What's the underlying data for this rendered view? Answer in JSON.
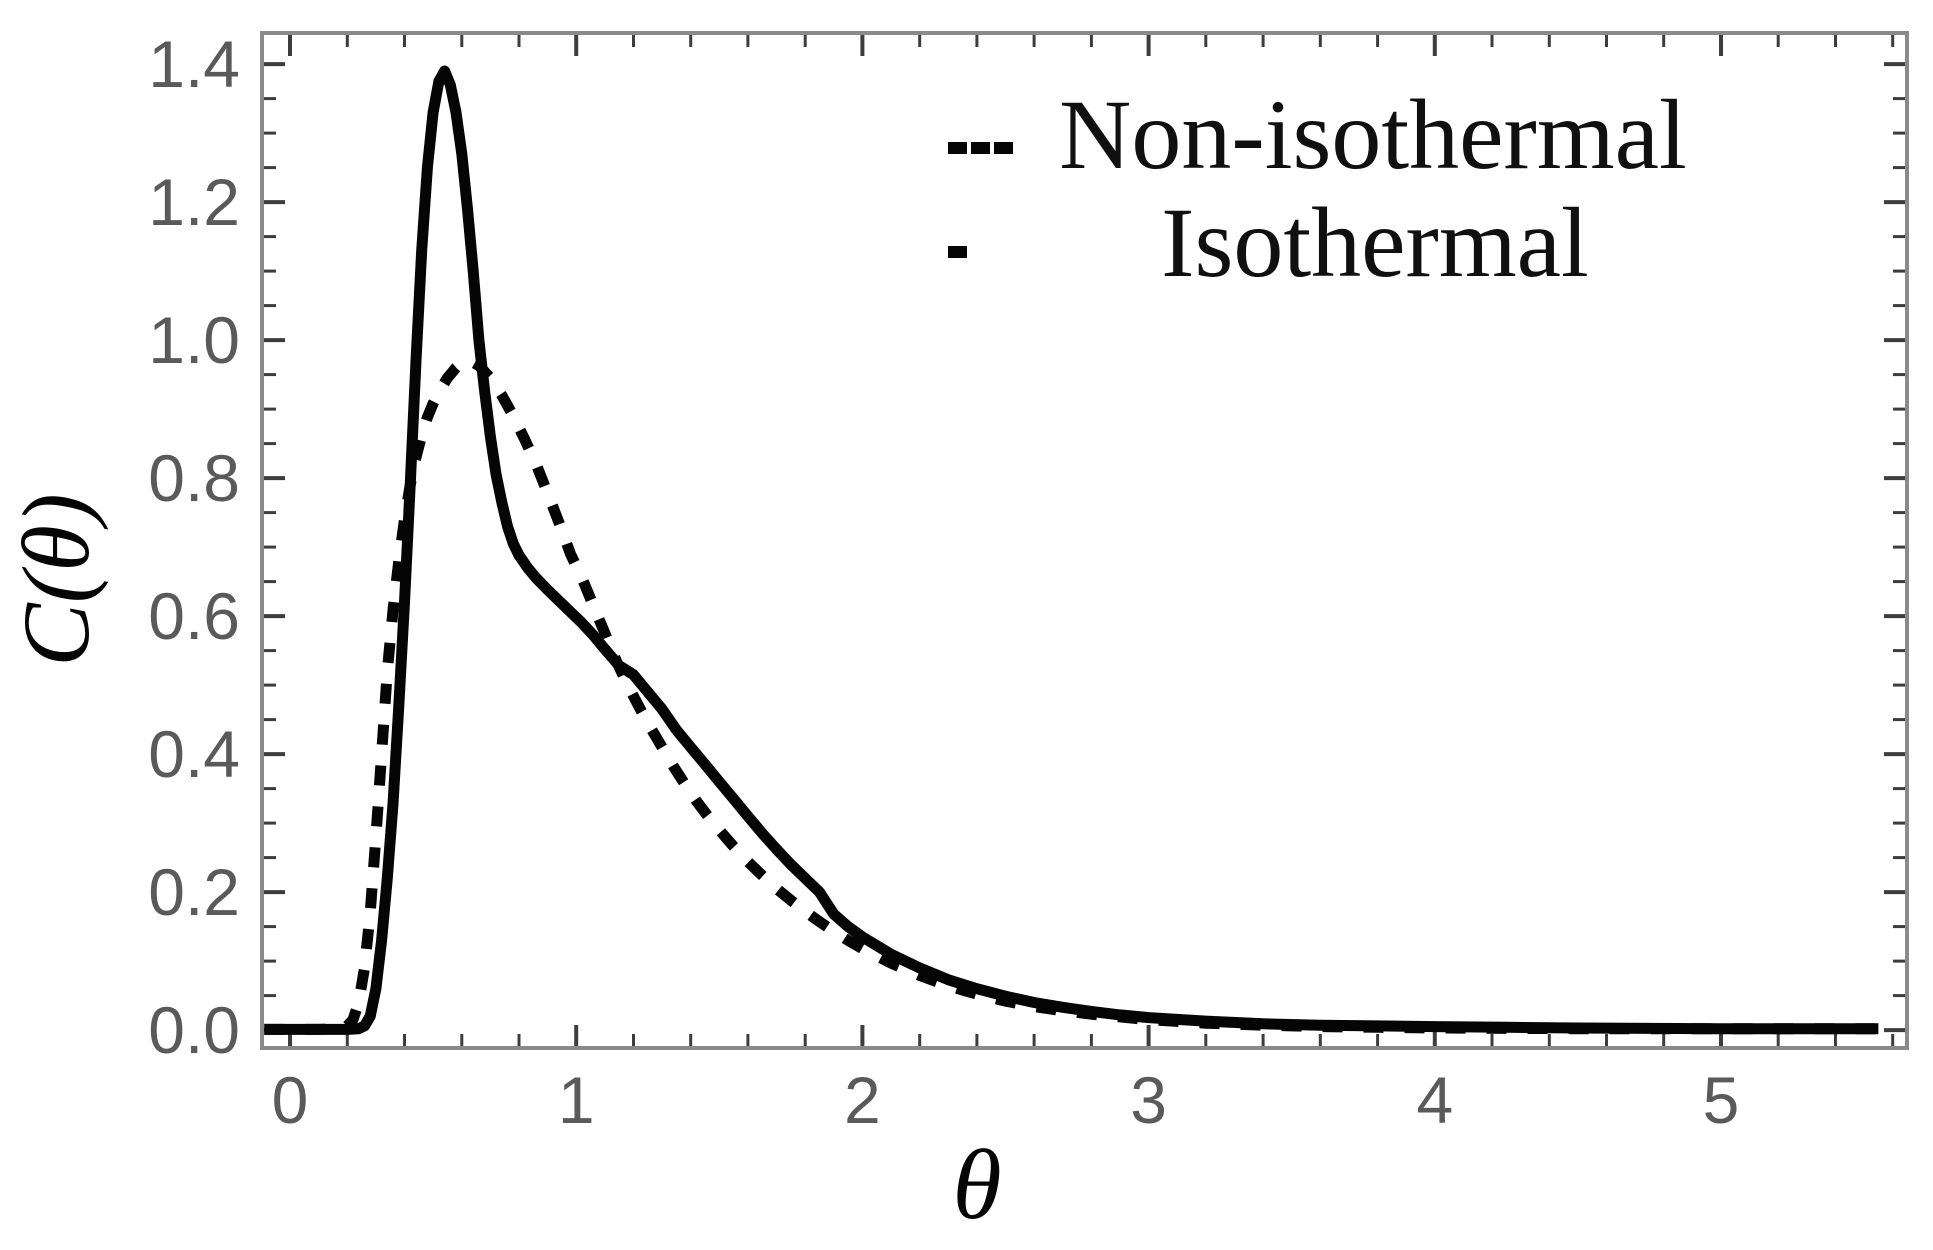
{
  "figure": {
    "xlabel": "θ",
    "ylabel": "C(θ)"
  },
  "legend": {
    "items": [
      {
        "label": "Non-isothermal",
        "line_style": "dashed"
      },
      {
        "label": "Isothermal",
        "line_style": "solid"
      }
    ]
  },
  "colors": {
    "curve": "#050505",
    "frame": "#8a8a8a",
    "tick": "#3d3d3d",
    "tick_label": "#5a5a5a",
    "background": "#ffffff"
  },
  "chart_data": {
    "type": "line",
    "title": "",
    "xlabel": "θ",
    "ylabel": "C(θ)",
    "xlim": [
      -0.098,
      5.65
    ],
    "ylim": [
      -0.026,
      1.445
    ],
    "x_ticks_major": [
      0,
      1,
      2,
      3,
      4,
      5
    ],
    "x_tick_labels": [
      "0",
      "1",
      "2",
      "3",
      "4",
      "5"
    ],
    "x_minor_step": 0.2,
    "y_ticks_major": [
      0.0,
      0.2,
      0.4,
      0.6,
      0.8,
      1.0,
      1.2,
      1.4
    ],
    "y_tick_labels": [
      "0.0",
      "0.2",
      "0.4",
      "0.6",
      "0.8",
      "1.0",
      "1.2",
      "1.4"
    ],
    "y_minor_step": 0.05,
    "grid": false,
    "legend_position": "top-right",
    "series": [
      {
        "name": "Non-isothermal",
        "line_style": "dashed",
        "color": "#050505",
        "points": [
          [
            -0.09,
            0.001
          ],
          [
            0.05,
            0.001
          ],
          [
            0.1,
            0.001
          ],
          [
            0.16,
            0.002
          ],
          [
            0.2,
            0.006
          ],
          [
            0.22,
            0.015
          ],
          [
            0.24,
            0.04
          ],
          [
            0.26,
            0.09
          ],
          [
            0.28,
            0.17
          ],
          [
            0.3,
            0.28
          ],
          [
            0.32,
            0.4
          ],
          [
            0.34,
            0.52
          ],
          [
            0.36,
            0.61
          ],
          [
            0.38,
            0.68
          ],
          [
            0.4,
            0.74
          ],
          [
            0.42,
            0.79
          ],
          [
            0.44,
            0.83
          ],
          [
            0.46,
            0.862
          ],
          [
            0.48,
            0.888
          ],
          [
            0.5,
            0.908
          ],
          [
            0.52,
            0.925
          ],
          [
            0.55,
            0.945
          ],
          [
            0.58,
            0.96
          ],
          [
            0.6,
            0.967
          ],
          [
            0.63,
            0.97
          ],
          [
            0.66,
            0.963
          ],
          [
            0.7,
            0.945
          ],
          [
            0.74,
            0.92
          ],
          [
            0.78,
            0.89
          ],
          [
            0.82,
            0.856
          ],
          [
            0.86,
            0.82
          ],
          [
            0.9,
            0.778
          ],
          [
            0.94,
            0.735
          ],
          [
            0.98,
            0.69
          ],
          [
            1.02,
            0.655
          ],
          [
            1.06,
            0.615
          ],
          [
            1.1,
            0.575
          ],
          [
            1.14,
            0.535
          ],
          [
            1.18,
            0.5
          ],
          [
            1.22,
            0.468
          ],
          [
            1.26,
            0.438
          ],
          [
            1.3,
            0.41
          ],
          [
            1.34,
            0.382
          ],
          [
            1.38,
            0.356
          ],
          [
            1.42,
            0.332
          ],
          [
            1.46,
            0.31
          ],
          [
            1.5,
            0.29
          ],
          [
            1.55,
            0.266
          ],
          [
            1.6,
            0.244
          ],
          [
            1.65,
            0.224
          ],
          [
            1.7,
            0.205
          ],
          [
            1.75,
            0.188
          ],
          [
            1.8,
            0.172
          ],
          [
            1.85,
            0.157
          ],
          [
            1.9,
            0.143
          ],
          [
            1.95,
            0.13
          ],
          [
            2.0,
            0.118
          ],
          [
            2.1,
            0.097
          ],
          [
            2.2,
            0.079
          ],
          [
            2.3,
            0.064
          ],
          [
            2.4,
            0.052
          ],
          [
            2.5,
            0.042
          ],
          [
            2.6,
            0.034
          ],
          [
            2.7,
            0.028
          ],
          [
            2.8,
            0.023
          ],
          [
            2.9,
            0.019
          ],
          [
            3.0,
            0.015
          ],
          [
            3.2,
            0.01
          ],
          [
            3.4,
            0.007
          ],
          [
            3.6,
            0.005
          ],
          [
            3.8,
            0.004
          ],
          [
            4.0,
            0.003
          ],
          [
            4.5,
            0.002
          ],
          [
            5.0,
            0.002
          ],
          [
            5.55,
            0.002
          ]
        ]
      },
      {
        "name": "Isothermal",
        "line_style": "solid",
        "color": "#050505",
        "points": [
          [
            -0.09,
            0.001
          ],
          [
            0.05,
            0.001
          ],
          [
            0.12,
            0.001
          ],
          [
            0.2,
            0.001
          ],
          [
            0.24,
            0.002
          ],
          [
            0.26,
            0.006
          ],
          [
            0.28,
            0.02
          ],
          [
            0.3,
            0.06
          ],
          [
            0.32,
            0.13
          ],
          [
            0.34,
            0.22
          ],
          [
            0.36,
            0.33
          ],
          [
            0.38,
            0.47
          ],
          [
            0.4,
            0.62
          ],
          [
            0.42,
            0.79
          ],
          [
            0.44,
            0.97
          ],
          [
            0.46,
            1.13
          ],
          [
            0.48,
            1.25
          ],
          [
            0.5,
            1.33
          ],
          [
            0.52,
            1.375
          ],
          [
            0.54,
            1.39
          ],
          [
            0.56,
            1.37
          ],
          [
            0.58,
            1.33
          ],
          [
            0.6,
            1.27
          ],
          [
            0.62,
            1.19
          ],
          [
            0.64,
            1.1
          ],
          [
            0.66,
            1.0
          ],
          [
            0.68,
            0.925
          ],
          [
            0.7,
            0.86
          ],
          [
            0.72,
            0.805
          ],
          [
            0.74,
            0.765
          ],
          [
            0.76,
            0.73
          ],
          [
            0.78,
            0.705
          ],
          [
            0.8,
            0.688
          ],
          [
            0.83,
            0.67
          ],
          [
            0.86,
            0.655
          ],
          [
            0.9,
            0.638
          ],
          [
            0.94,
            0.622
          ],
          [
            0.98,
            0.606
          ],
          [
            1.02,
            0.59
          ],
          [
            1.06,
            0.572
          ],
          [
            1.1,
            0.552
          ],
          [
            1.15,
            0.528
          ],
          [
            1.2,
            0.515
          ],
          [
            1.25,
            0.49
          ],
          [
            1.3,
            0.465
          ],
          [
            1.35,
            0.435
          ],
          [
            1.4,
            0.41
          ],
          [
            1.45,
            0.385
          ],
          [
            1.5,
            0.36
          ],
          [
            1.55,
            0.335
          ],
          [
            1.6,
            0.31
          ],
          [
            1.65,
            0.285
          ],
          [
            1.7,
            0.262
          ],
          [
            1.75,
            0.24
          ],
          [
            1.8,
            0.22
          ],
          [
            1.85,
            0.2
          ],
          [
            1.9,
            0.168
          ],
          [
            1.95,
            0.15
          ],
          [
            2.0,
            0.135
          ],
          [
            2.1,
            0.11
          ],
          [
            2.2,
            0.09
          ],
          [
            2.3,
            0.073
          ],
          [
            2.4,
            0.06
          ],
          [
            2.5,
            0.049
          ],
          [
            2.6,
            0.04
          ],
          [
            2.7,
            0.033
          ],
          [
            2.8,
            0.027
          ],
          [
            2.9,
            0.022
          ],
          [
            3.0,
            0.018
          ],
          [
            3.2,
            0.013
          ],
          [
            3.4,
            0.009
          ],
          [
            3.6,
            0.007
          ],
          [
            3.8,
            0.006
          ],
          [
            4.0,
            0.005
          ],
          [
            4.25,
            0.004
          ],
          [
            4.5,
            0.003
          ],
          [
            5.0,
            0.002
          ],
          [
            5.55,
            0.002
          ]
        ]
      }
    ]
  }
}
